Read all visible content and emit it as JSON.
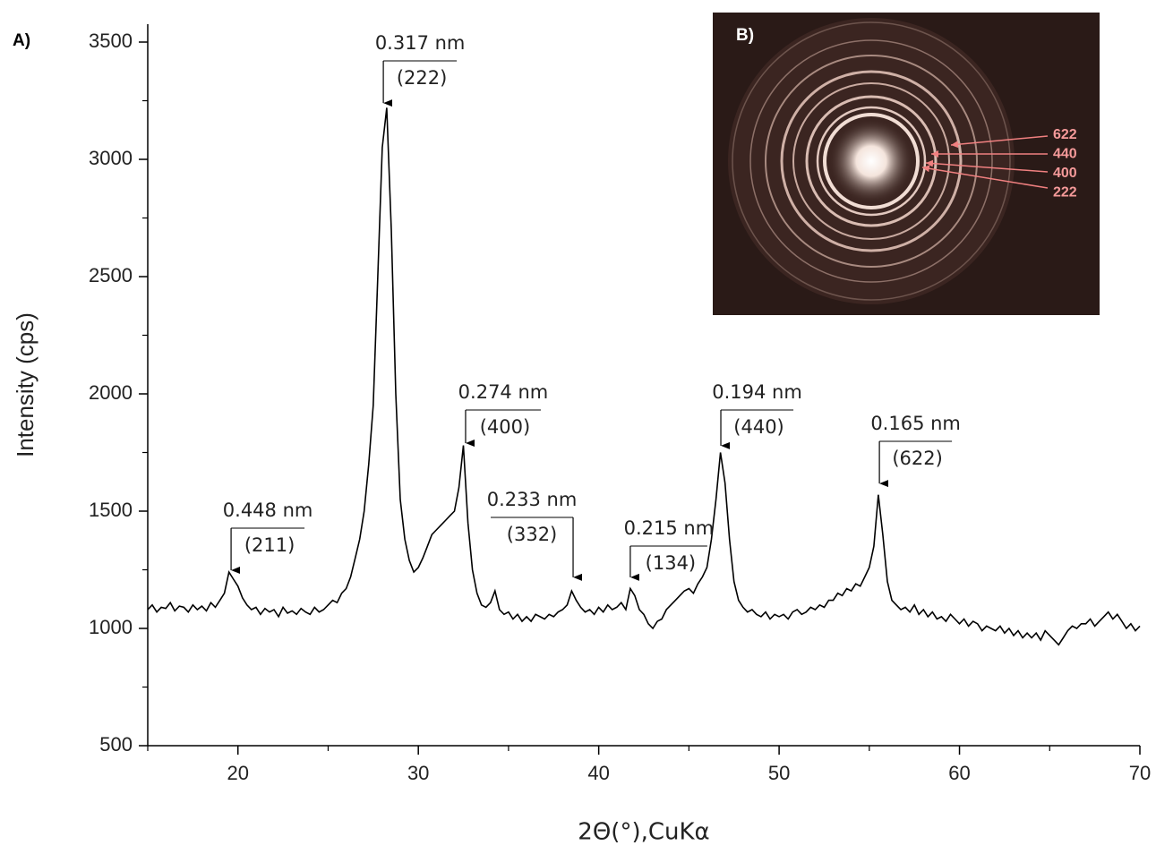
{
  "chart_data": {
    "type": "line",
    "panel_label": "A)",
    "inset_label": "B)",
    "inset_ring_labels": [
      "622",
      "440",
      "400",
      "222"
    ],
    "x_label": "2Θ(°),CuKα",
    "y_label": "Intensity (cps)",
    "color": "#000000",
    "xlim": [
      15,
      70
    ],
    "xticks": [
      20,
      30,
      40,
      50,
      60,
      70
    ],
    "xminor_ticks": [
      15,
      25,
      35,
      45,
      55,
      65
    ],
    "ylim": [
      500,
      3500
    ],
    "yticks": [
      500,
      1000,
      1500,
      2000,
      2500,
      3000,
      3500
    ],
    "yminor_ticks": [
      750,
      1250,
      1750,
      2250,
      2750,
      3250
    ],
    "x": [
      15,
      15.25,
      15.5,
      15.75,
      16,
      16.25,
      16.5,
      16.75,
      17,
      17.25,
      17.5,
      17.75,
      18,
      18.25,
      18.5,
      18.75,
      19,
      19.25,
      19.5,
      19.75,
      20,
      20.25,
      20.5,
      20.75,
      21,
      21.25,
      21.5,
      21.75,
      22,
      22.25,
      22.5,
      22.75,
      23,
      23.25,
      23.5,
      23.75,
      24,
      24.25,
      24.5,
      24.75,
      25,
      25.25,
      25.5,
      25.75,
      26,
      26.25,
      26.5,
      26.75,
      27,
      27.25,
      27.5,
      27.75,
      28,
      28.25,
      28.5,
      28.75,
      29,
      29.25,
      29.5,
      29.75,
      30,
      30.25,
      30.5,
      30.75,
      31,
      31.25,
      31.5,
      31.75,
      32,
      32.25,
      32.5,
      32.75,
      33,
      33.25,
      33.5,
      33.75,
      34,
      34.25,
      34.5,
      34.75,
      35,
      35.25,
      35.5,
      35.75,
      36,
      36.25,
      36.5,
      36.75,
      37,
      37.25,
      37.5,
      37.75,
      38,
      38.25,
      38.5,
      38.75,
      39,
      39.25,
      39.5,
      39.75,
      40,
      40.25,
      40.5,
      40.75,
      41,
      41.25,
      41.5,
      41.75,
      42,
      42.25,
      42.5,
      42.75,
      43,
      43.25,
      43.5,
      43.75,
      44,
      44.25,
      44.5,
      44.75,
      45,
      45.25,
      45.5,
      45.75,
      46,
      46.25,
      46.5,
      46.75,
      47,
      47.25,
      47.5,
      47.75,
      48,
      48.25,
      48.5,
      48.75,
      49,
      49.25,
      49.5,
      49.75,
      50,
      50.25,
      50.5,
      50.75,
      51,
      51.25,
      51.5,
      51.75,
      52,
      52.25,
      52.5,
      52.75,
      53,
      53.25,
      53.5,
      53.75,
      54,
      54.25,
      54.5,
      54.75,
      55,
      55.25,
      55.5,
      55.75,
      56,
      56.25,
      56.5,
      56.75,
      57,
      57.25,
      57.5,
      57.75,
      58,
      58.25,
      58.5,
      58.75,
      59,
      59.25,
      59.5,
      59.75,
      60,
      60.25,
      60.5,
      60.75,
      61,
      61.25,
      61.5,
      61.75,
      62,
      62.25,
      62.5,
      62.75,
      63,
      63.25,
      63.5,
      63.75,
      64,
      64.25,
      64.5,
      64.75,
      65,
      65.25,
      65.5,
      65.75,
      66,
      66.25,
      66.5,
      66.75,
      67,
      67.25,
      67.5,
      67.75,
      68,
      68.25,
      68.5,
      68.75,
      69,
      69.25,
      69.5,
      69.75,
      70
    ],
    "values": [
      1080,
      1100,
      1070,
      1090,
      1085,
      1110,
      1075,
      1095,
      1090,
      1070,
      1100,
      1080,
      1095,
      1075,
      1110,
      1090,
      1120,
      1150,
      1240,
      1210,
      1180,
      1130,
      1100,
      1080,
      1090,
      1060,
      1085,
      1070,
      1080,
      1050,
      1090,
      1065,
      1075,
      1060,
      1085,
      1070,
      1060,
      1090,
      1070,
      1080,
      1100,
      1120,
      1110,
      1150,
      1170,
      1220,
      1300,
      1380,
      1500,
      1700,
      1950,
      2500,
      3050,
      3220,
      2700,
      2000,
      1550,
      1380,
      1290,
      1240,
      1260,
      1300,
      1350,
      1400,
      1420,
      1440,
      1460,
      1480,
      1500,
      1600,
      1780,
      1450,
      1250,
      1150,
      1100,
      1090,
      1110,
      1160,
      1080,
      1060,
      1070,
      1040,
      1060,
      1030,
      1050,
      1030,
      1060,
      1050,
      1040,
      1060,
      1050,
      1070,
      1080,
      1100,
      1160,
      1120,
      1090,
      1070,
      1080,
      1060,
      1090,
      1070,
      1100,
      1080,
      1090,
      1110,
      1080,
      1170,
      1140,
      1080,
      1060,
      1020,
      1000,
      1030,
      1040,
      1080,
      1100,
      1120,
      1140,
      1160,
      1170,
      1150,
      1190,
      1220,
      1260,
      1380,
      1550,
      1750,
      1620,
      1380,
      1200,
      1120,
      1090,
      1070,
      1080,
      1060,
      1050,
      1070,
      1040,
      1060,
      1050,
      1060,
      1040,
      1070,
      1080,
      1060,
      1070,
      1090,
      1080,
      1100,
      1090,
      1120,
      1120,
      1150,
      1140,
      1170,
      1160,
      1190,
      1180,
      1220,
      1260,
      1350,
      1570,
      1400,
      1200,
      1120,
      1100,
      1080,
      1090,
      1070,
      1100,
      1060,
      1080,
      1050,
      1070,
      1040,
      1050,
      1030,
      1060,
      1040,
      1020,
      1040,
      1010,
      1030,
      1020,
      990,
      1010,
      1000,
      990,
      1010,
      980,
      1000,
      970,
      990,
      960,
      980,
      960,
      980,
      950,
      990,
      970,
      950,
      930,
      960,
      990,
      1010,
      1000,
      1020,
      1020,
      1040,
      1010,
      1030,
      1050,
      1070,
      1040,
      1060,
      1030,
      1000,
      1020,
      990,
      1010
    ],
    "annotations": [
      {
        "text": "0.448 nm",
        "hkl": "(211)",
        "x": 19.62,
        "y": 1248
      },
      {
        "text": "0.317 nm",
        "hkl": "(222)",
        "x": 28.06,
        "y": 3240
      },
      {
        "text": "0.274 nm",
        "hkl": "(400)",
        "x": 32.62,
        "y": 1790
      },
      {
        "text": "0.233 nm",
        "hkl": "(332)",
        "x": 38.58,
        "y": 1218
      },
      {
        "text": "0.215 nm",
        "hkl": "(134)",
        "x": 41.75,
        "y": 1218
      },
      {
        "text": "0.194 nm",
        "hkl": "(440)",
        "x": 46.77,
        "y": 1779
      },
      {
        "text": "0.165 nm",
        "hkl": "(622)",
        "x": 55.56,
        "y": 1618
      }
    ]
  }
}
